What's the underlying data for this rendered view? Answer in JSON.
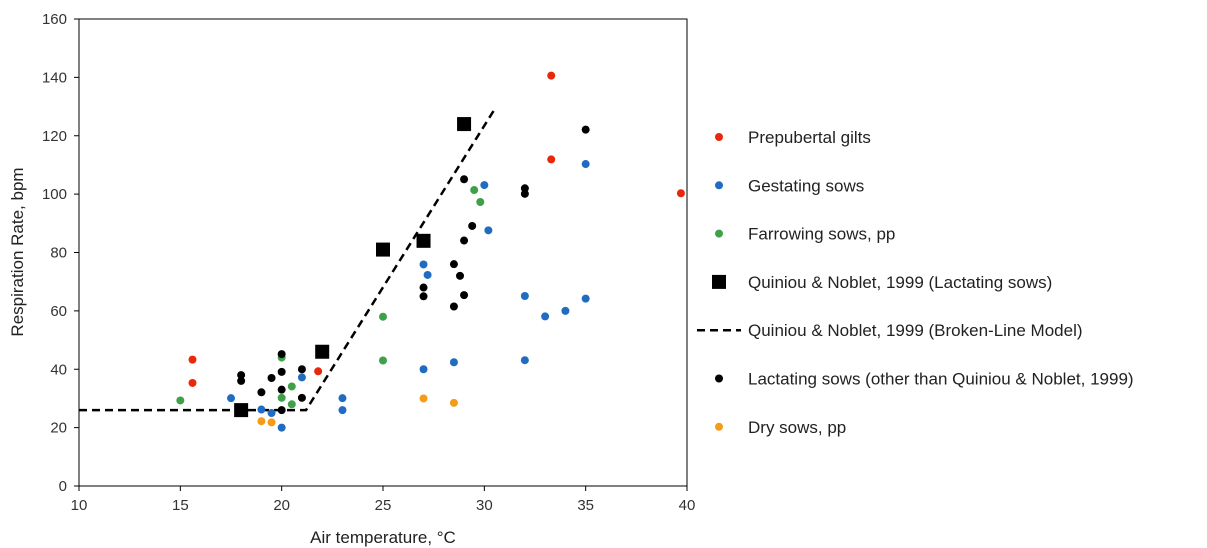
{
  "chart_data": {
    "type": "scatter",
    "xlabel": "Air temperature, °C",
    "ylabel": "Respiration Rate, bpm",
    "xlim": [
      10,
      40
    ],
    "ylim": [
      0,
      160
    ],
    "xticks": [
      10,
      15,
      20,
      25,
      30,
      35,
      40
    ],
    "yticks": [
      0,
      20,
      40,
      60,
      80,
      100,
      120,
      140,
      160
    ],
    "grid": false,
    "legend_position": "right",
    "series": [
      {
        "name": "Prepubertal gilts",
        "marker": "circle",
        "color": "#e8280c",
        "points": [
          [
            15.6,
            43.3
          ],
          [
            15.6,
            35.3
          ],
          [
            21.8,
            39.3
          ],
          [
            33.3,
            140.6
          ],
          [
            33.3,
            111.9
          ],
          [
            39.7,
            100.3
          ]
        ]
      },
      {
        "name": "Gestating sows",
        "marker": "circle",
        "color": "#1f6cc0",
        "points": [
          [
            17.5,
            30.1
          ],
          [
            19.0,
            26.2
          ],
          [
            19.5,
            25.0
          ],
          [
            20.0,
            20.0
          ],
          [
            21.0,
            37.2
          ],
          [
            23.0,
            30.1
          ],
          [
            23.0,
            26.0
          ],
          [
            27.0,
            75.9
          ],
          [
            27.2,
            72.3
          ],
          [
            27.0,
            40.0
          ],
          [
            28.5,
            42.4
          ],
          [
            30.0,
            103.1
          ],
          [
            30.2,
            87.6
          ],
          [
            32.0,
            65.1
          ],
          [
            32.0,
            43.1
          ],
          [
            33.0,
            58.1
          ],
          [
            34.0,
            60.0
          ],
          [
            35.0,
            110.3
          ],
          [
            35.0,
            64.2
          ]
        ]
      },
      {
        "name": "Farrowing sows, pp",
        "marker": "circle",
        "color": "#3fa04a",
        "points": [
          [
            15.0,
            29.3
          ],
          [
            20.0,
            44.0
          ],
          [
            20.0,
            30.2
          ],
          [
            20.5,
            34.1
          ],
          [
            20.5,
            28.0
          ],
          [
            25.0,
            58.0
          ],
          [
            25.0,
            43.0
          ],
          [
            29.5,
            101.4
          ],
          [
            29.8,
            97.3
          ]
        ]
      },
      {
        "name": "Quiniou & Noblet, 1999 (Lactating sows)",
        "marker": "square",
        "color": "#000000",
        "points": [
          [
            18.0,
            26.0
          ],
          [
            22.0,
            46.0
          ],
          [
            25.0,
            81.0
          ],
          [
            27.0,
            84.0
          ],
          [
            29.0,
            124.0
          ]
        ]
      },
      {
        "name": "Quiniou & Noblet, 1999 (Broken-Line Model)",
        "marker": "dashed-line",
        "color": "#000000",
        "points": [
          [
            10.0,
            26.0
          ],
          [
            21.2,
            26.0
          ],
          [
            30.5,
            129.0
          ]
        ]
      },
      {
        "name": "Lactating sows (other than Quiniou & Noblet, 1999)",
        "marker": "circle",
        "color": "#000000",
        "points": [
          [
            18.0,
            38.0
          ],
          [
            18.0,
            36.0
          ],
          [
            19.0,
            32.1
          ],
          [
            19.5,
            37.0
          ],
          [
            20.0,
            45.2
          ],
          [
            20.0,
            39.1
          ],
          [
            20.0,
            33.0
          ],
          [
            20.0,
            26.0
          ],
          [
            21.0,
            40.0
          ],
          [
            21.0,
            30.2
          ],
          [
            27.0,
            68.0
          ],
          [
            27.0,
            65.0
          ],
          [
            28.5,
            76.0
          ],
          [
            28.5,
            61.5
          ],
          [
            28.8,
            72.0
          ],
          [
            29.0,
            105.1
          ],
          [
            29.0,
            84.1
          ],
          [
            29.0,
            65.4
          ],
          [
            29.4,
            89.1
          ],
          [
            32.0,
            102.0
          ],
          [
            32.0,
            100.1
          ],
          [
            35.0,
            122.1
          ]
        ]
      },
      {
        "name": "Dry sows, pp",
        "marker": "circle",
        "color": "#f39c1a",
        "points": [
          [
            19.0,
            22.2
          ],
          [
            19.5,
            21.8
          ],
          [
            27.0,
            30.0
          ],
          [
            28.5,
            28.5
          ]
        ]
      }
    ]
  }
}
